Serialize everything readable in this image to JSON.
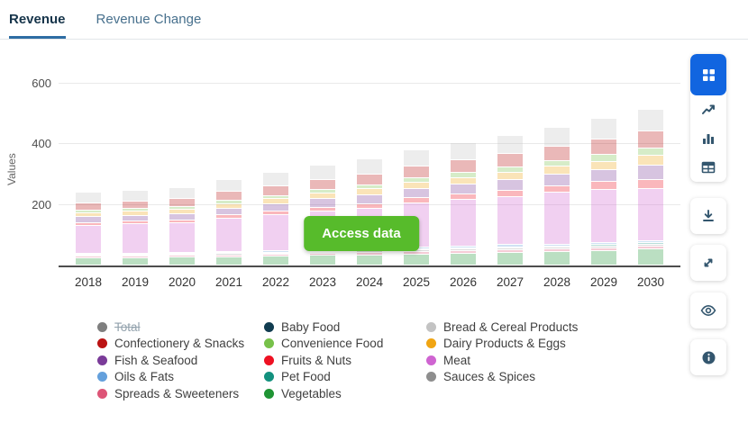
{
  "tabs": [
    {
      "label": "Revenue",
      "active": true
    },
    {
      "label": "Revenue Change",
      "active": false
    }
  ],
  "access_button": {
    "label": "Access data",
    "color": "#57bb2b"
  },
  "toolbar": {
    "active_color": "#1165e0",
    "icon_color": "#33566e",
    "buttons": [
      "blocks-view",
      "line-chart-view",
      "bar-chart-view",
      "table-view",
      "download",
      "expand",
      "eye",
      "info"
    ]
  },
  "chart_data": {
    "type": "bar",
    "stacked": true,
    "title": "",
    "xlabel": "",
    "ylabel": "Values",
    "yticks": [
      200,
      400,
      600
    ],
    "ylim": [
      0,
      620
    ],
    "grid": true,
    "categories": [
      "2018",
      "2019",
      "2020",
      "2021",
      "2022",
      "2023",
      "2024",
      "2025",
      "2026",
      "2027",
      "2028",
      "2029",
      "2030"
    ],
    "bar_opacity": 0.3,
    "series": [
      {
        "name": "Baby Food",
        "color": "#113c50",
        "values": [
          1,
          1,
          1,
          1,
          1,
          1,
          2,
          2,
          2,
          2,
          2,
          2,
          2
        ]
      },
      {
        "name": "Bread & Cereal Products",
        "color": "#c3c3c3",
        "values": [
          34,
          35,
          36,
          40,
          43,
          46,
          49,
          53,
          56,
          60,
          63,
          67,
          72
        ]
      },
      {
        "name": "Confectionery & Snacks",
        "color": "#bb1313",
        "values": [
          26,
          26,
          27,
          30,
          32,
          34,
          36,
          39,
          41,
          44,
          47,
          51,
          55
        ]
      },
      {
        "name": "Convenience Food",
        "color": "#77c14a",
        "values": [
          8,
          9,
          9,
          10,
          11,
          12,
          13,
          15,
          16,
          18,
          19,
          22,
          25
        ]
      },
      {
        "name": "Dairy Products & Eggs",
        "color": "#f0a513",
        "values": [
          13,
          13,
          14,
          15,
          16,
          18,
          19,
          21,
          22,
          24,
          26,
          27,
          32
        ]
      },
      {
        "name": "Fish & Seafood",
        "color": "#7a3b99",
        "values": [
          20,
          20,
          21,
          23,
          25,
          27,
          29,
          31,
          33,
          36,
          38,
          40,
          46
        ]
      },
      {
        "name": "Fruits & Nuts",
        "color": "#ee1122",
        "values": [
          8,
          9,
          9,
          11,
          12,
          14,
          15,
          17,
          19,
          21,
          23,
          25,
          30
        ]
      },
      {
        "name": "Meat",
        "color": "#cf64d1",
        "values": [
          92,
          95,
          97,
          109,
          117,
          126,
          134,
          145,
          153,
          158,
          170,
          175,
          172
        ]
      },
      {
        "name": "Oils & Fats",
        "color": "#64a0dc",
        "values": [
          4,
          4,
          4,
          4,
          5,
          5,
          5,
          6,
          6,
          7,
          7,
          7,
          8
        ]
      },
      {
        "name": "Pet Food",
        "color": "#13917e",
        "values": [
          2,
          2,
          2,
          3,
          3,
          3,
          3,
          4,
          4,
          4,
          4,
          5,
          5
        ]
      },
      {
        "name": "Sauces & Spices",
        "color": "#8e8e8e",
        "values": [
          3,
          3,
          3,
          4,
          4,
          4,
          5,
          5,
          5,
          6,
          6,
          6,
          7
        ]
      },
      {
        "name": "Spreads & Sweeteners",
        "color": "#dd5577",
        "values": [
          5,
          5,
          6,
          6,
          6,
          7,
          7,
          7,
          8,
          8,
          8,
          9,
          9
        ]
      },
      {
        "name": "Vegetables",
        "color": "#1f9434",
        "values": [
          24,
          25,
          26,
          28,
          30,
          32,
          34,
          37,
          39,
          42,
          44,
          48,
          52
        ]
      }
    ],
    "legend_position": "bottom",
    "legend_columns": [
      [
        {
          "label": "Total",
          "color": "#7f7f7f",
          "disabled": true
        },
        {
          "label": "Confectionery & Snacks",
          "color": "#bb1313"
        },
        {
          "label": "Fish & Seafood",
          "color": "#7a3b99"
        },
        {
          "label": "Oils & Fats",
          "color": "#64a0dc"
        },
        {
          "label": "Spreads & Sweeteners",
          "color": "#dd5577"
        }
      ],
      [
        {
          "label": "Baby Food",
          "color": "#113c50"
        },
        {
          "label": "Convenience Food",
          "color": "#77c14a"
        },
        {
          "label": "Fruits & Nuts",
          "color": "#ee1122"
        },
        {
          "label": "Pet Food",
          "color": "#13917e"
        },
        {
          "label": "Vegetables",
          "color": "#1f9434"
        }
      ],
      [
        {
          "label": "Bread & Cereal Products",
          "color": "#c3c3c3"
        },
        {
          "label": "Dairy Products & Eggs",
          "color": "#f0a513"
        },
        {
          "label": "Meat",
          "color": "#cf64d1"
        },
        {
          "label": "Sauces & Spices",
          "color": "#8e8e8e"
        }
      ]
    ]
  }
}
